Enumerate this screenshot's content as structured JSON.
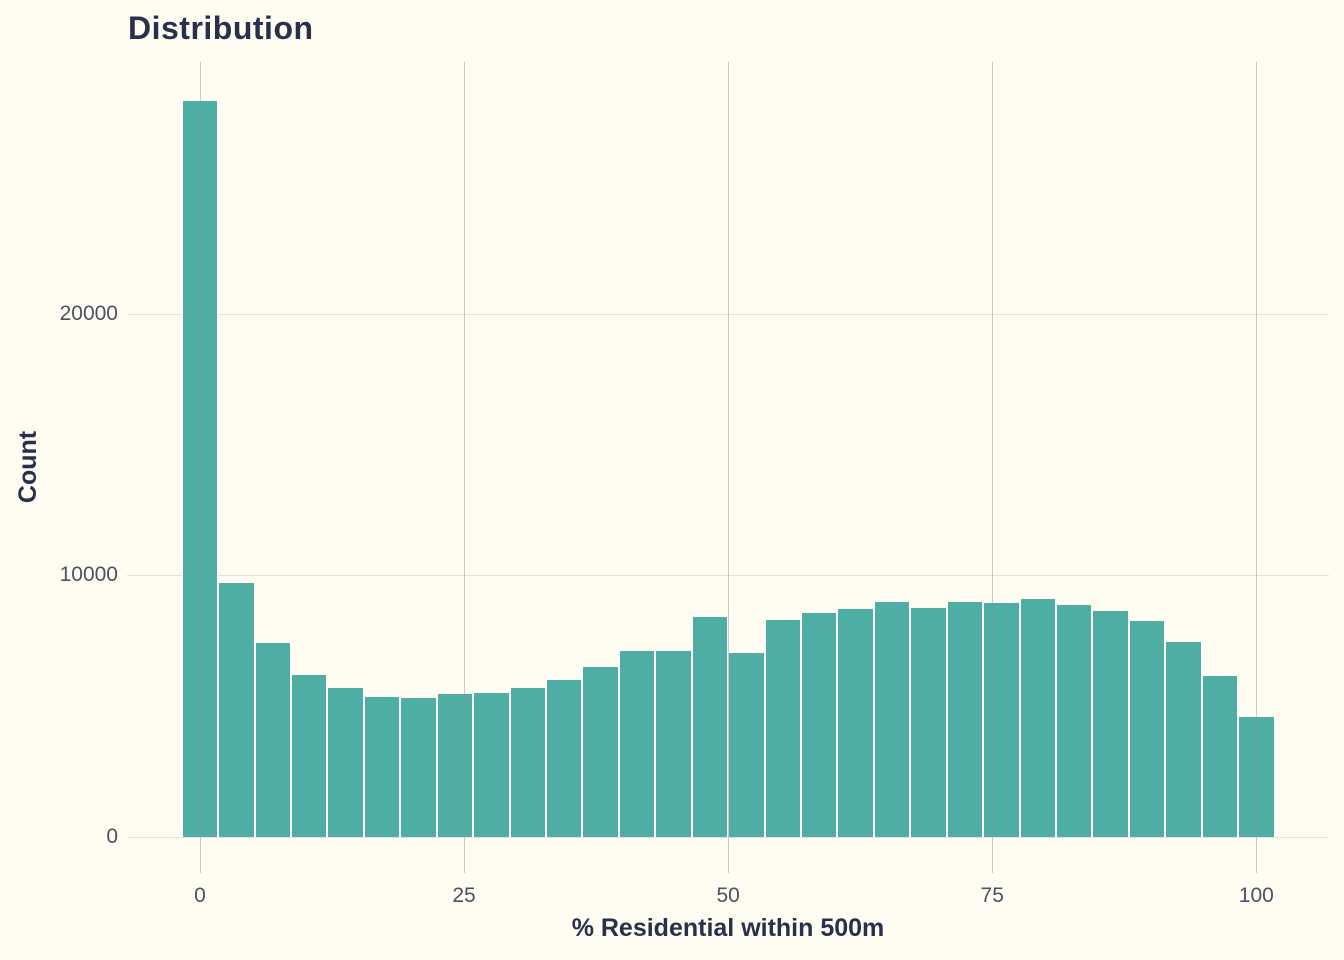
{
  "chart_data": {
    "type": "bar",
    "subtype": "histogram",
    "title": "Distribution",
    "xlabel": "% Residential within 500m",
    "ylabel": "Count",
    "bin_width": 3.448,
    "bin_centers": [
      0,
      3.45,
      6.9,
      10.34,
      13.79,
      17.24,
      20.69,
      24.14,
      27.59,
      31.03,
      34.48,
      37.93,
      41.38,
      44.83,
      48.28,
      51.72,
      55.17,
      58.62,
      62.07,
      65.52,
      68.97,
      72.41,
      75.86,
      79.31,
      82.76,
      86.21,
      89.66,
      93.1,
      96.55,
      100
    ],
    "counts": [
      28150,
      9700,
      7400,
      6200,
      5680,
      5340,
      5300,
      5460,
      5500,
      5690,
      6000,
      6500,
      7100,
      7100,
      8400,
      7050,
      8300,
      8550,
      8700,
      9000,
      8740,
      9000,
      8950,
      9110,
      8880,
      8650,
      8250,
      7450,
      6150,
      4600
    ],
    "x_ticks": [
      0,
      25,
      50,
      75,
      100
    ],
    "y_ticks": [
      0,
      10000,
      20000
    ],
    "x_domain": [
      -6.91,
      106.88
    ],
    "y_domain": [
      -1377,
      29637
    ],
    "grid": true,
    "legend": "none",
    "colors": {
      "bar": "#4FAEA3",
      "bar_separator": "#FFFFFF",
      "grid": "#E4E4DF",
      "background": "#FFFDF2",
      "title_text": "#2A2F4C",
      "tick_text": "#4B5263"
    }
  }
}
